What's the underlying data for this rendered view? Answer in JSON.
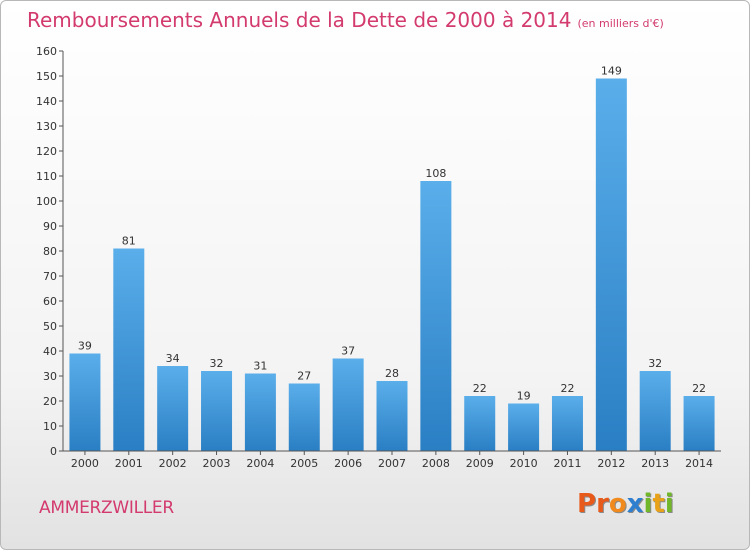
{
  "header": {
    "title": "Remboursements Annuels de la Dette de 2000 à 2014",
    "subtitle": "(en milliers d'€)"
  },
  "footer": {
    "commune": "AMMERZWILLER",
    "brand": "Proxiti"
  },
  "colors": {
    "title": "#d33a6d",
    "bar_light": "#5aaeea",
    "bar_dark": "#2a7fc4",
    "brand_letters": [
      "#e85a1a",
      "#e85a1a",
      "#f08a1e",
      "#2f7fd0",
      "#72b62a",
      "#e8a21a",
      "#72b62a"
    ]
  },
  "chart_data": {
    "type": "bar",
    "title": "Remboursements Annuels de la Dette de 2000 à 2014",
    "subtitle": "(en milliers d'€)",
    "xlabel": "",
    "ylabel": "",
    "categories": [
      "2000",
      "2001",
      "2002",
      "2003",
      "2004",
      "2005",
      "2006",
      "2007",
      "2008",
      "2009",
      "2010",
      "2011",
      "2012",
      "2013",
      "2014"
    ],
    "values": [
      39,
      81,
      34,
      32,
      31,
      27,
      37,
      28,
      108,
      22,
      19,
      22,
      149,
      32,
      22
    ],
    "ylim": [
      0,
      160
    ],
    "yticks": [
      0,
      10,
      20,
      30,
      40,
      50,
      60,
      70,
      80,
      90,
      100,
      110,
      120,
      130,
      140,
      150,
      160
    ],
    "grid": false,
    "legend": "none"
  }
}
